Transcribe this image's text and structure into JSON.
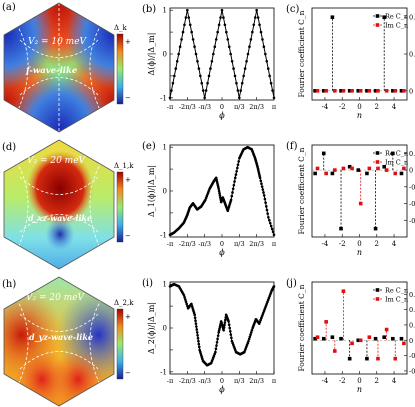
{
  "figure": {
    "rows": [
      {
        "map": {
          "panel_label": "(a)",
          "annotation": "V₂ = 10 meV",
          "wave_label": "f-wave-like",
          "colorbar_title": "Δ_k",
          "colorbar_plus": "+",
          "colorbar_minus": "−",
          "colors": {
            "positive": "#e8261a",
            "negative": "#2b3fd6",
            "zero": "#8fe07a"
          }
        },
        "gap": {
          "panel_label": "(b)",
          "ylabel": "Δ(ϕ)/|Δ_m|",
          "xlabel": "ϕ"
        },
        "fourier": {
          "panel_label": "(c)",
          "ylabel": "Fourier coefficient C_n",
          "xlabel": "n",
          "legend": [
            "Re C_n",
            "Im C_n"
          ]
        }
      },
      {
        "map": {
          "panel_label": "(d)",
          "annotation": "V₂ = 20 meV",
          "wave_label": "d_xz-wave-like",
          "colorbar_title": "Δ_1,k",
          "colorbar_plus": "+",
          "colorbar_minus": "−",
          "colors": {
            "positive": "#a80000",
            "negative": "#1f2fa8",
            "zero": "#7fe0e8"
          }
        },
        "gap": {
          "panel_label": "(e)",
          "ylabel": "Δ_1(ϕ)/|Δ_m|",
          "xlabel": "ϕ"
        },
        "fourier": {
          "panel_label": "(f)",
          "ylabel": "Fourier coefficient C_n",
          "xlabel": "n",
          "legend": [
            "Re C_n",
            "Im C_n"
          ]
        }
      },
      {
        "map": {
          "panel_label": "(h)",
          "annotation": "V₂ = 20 meV",
          "wave_label": "d_yz-wave-like",
          "colorbar_title": "Δ_2,k",
          "colorbar_plus": "+",
          "colorbar_minus": "−",
          "colors": {
            "positive": "#e0201a",
            "negative": "#2533c8",
            "zero": "#9be8b0"
          }
        },
        "gap": {
          "panel_label": "(i)",
          "ylabel": "Δ_2(ϕ)/|Δ_m|",
          "xlabel": "ϕ"
        },
        "fourier": {
          "panel_label": "(j)",
          "ylabel": "Fourier coefficient C_n",
          "xlabel": "n",
          "legend": [
            "Re C_n",
            "Im C_n"
          ]
        }
      }
    ]
  },
  "chart_data": [
    {
      "type": "line",
      "panel": "(b)",
      "ylabel": "Δ(ϕ)/|Δ_m|",
      "xlabel": "ϕ",
      "x_ticks": [
        "-π",
        "-2π/3",
        "-π/3",
        "0",
        "π/3",
        "2π/3",
        "π"
      ],
      "y_ticks": [
        "-1",
        "-0.5",
        "0",
        "0.5",
        "1"
      ],
      "xlim": [
        -3.1416,
        3.1416
      ],
      "ylim": [
        -1.05,
        1.05
      ],
      "series": [
        {
          "x": [
            -3.1416,
            -2.618,
            -2.0944,
            -1.5708,
            -1.0472,
            -0.5236,
            0,
            0.5236,
            1.0472,
            1.5708,
            2.0944,
            2.618,
            3.1416
          ],
          "values": [
            -1,
            0,
            1,
            0,
            -1,
            0,
            1,
            0,
            -1,
            0,
            1,
            0,
            -1
          ]
        }
      ]
    },
    {
      "type": "scatter",
      "panel": "(c)",
      "ylabel": "Fourier coefficient C_n",
      "xlabel": "n",
      "x_ticks": [
        "-4",
        "-2",
        "0",
        "2",
        "4"
      ],
      "y_ticks": [
        "0",
        "0.2",
        "0.4"
      ],
      "xlim": [
        -5.5,
        5.5
      ],
      "ylim": [
        -0.05,
        0.45
      ],
      "series": [
        {
          "name": "Re C_n",
          "x": [
            -5,
            -4,
            -3,
            -2,
            -1,
            0,
            1,
            2,
            3,
            4,
            5
          ],
          "values": [
            0,
            0,
            0.4,
            0,
            0,
            0,
            0,
            0,
            0.4,
            0,
            0
          ]
        },
        {
          "name": "Im C_n",
          "x": [
            -5,
            -4,
            -3,
            -2,
            -1,
            0,
            1,
            2,
            3,
            4,
            5
          ],
          "values": [
            0,
            0,
            0,
            0,
            0,
            0,
            0,
            0,
            0,
            0,
            0
          ]
        }
      ]
    },
    {
      "type": "line",
      "panel": "(e)",
      "ylabel": "Δ_1(ϕ)/|Δ_m|",
      "xlabel": "ϕ",
      "x_ticks": [
        "-π",
        "-2π/3",
        "-π/3",
        "0",
        "π/3",
        "2π/3",
        "π"
      ],
      "y_ticks": [
        "-1",
        "-0.5",
        "0",
        "0.5",
        "1"
      ],
      "xlim": [
        -3.1416,
        3.1416
      ],
      "ylim": [
        -1.05,
        1.05
      ],
      "series": [
        {
          "x": [
            -3.1416,
            -2.9,
            -2.6,
            -2.3,
            -2.1,
            -1.95,
            -1.75,
            -1.5,
            -1.25,
            -1.0,
            -0.75,
            -0.5,
            -0.35,
            -0.2,
            -0.05,
            0.05,
            0.2,
            0.35,
            0.55,
            0.8,
            1.05,
            1.3,
            1.55,
            1.8,
            2.0,
            2.15,
            2.3,
            2.55,
            2.8,
            3.1416
          ],
          "values": [
            -1.0,
            -0.95,
            -0.85,
            -0.72,
            -0.55,
            -0.38,
            -0.28,
            -0.42,
            -0.35,
            -0.2,
            0.05,
            0.22,
            0.3,
            0.05,
            -0.25,
            -0.15,
            -0.3,
            -0.45,
            -0.2,
            0.3,
            0.75,
            0.95,
            1.0,
            0.95,
            0.75,
            0.55,
            0.3,
            -0.1,
            -0.6,
            -1.0
          ]
        }
      ]
    },
    {
      "type": "scatter",
      "panel": "(f)",
      "ylabel": "Fourier coefficient C_n",
      "xlabel": "n",
      "x_ticks": [
        "-4",
        "-2",
        "0",
        "2",
        "4"
      ],
      "y_ticks": [
        "-0.3",
        "-0.2",
        "-0.1",
        "0",
        "0.1"
      ],
      "xlim": [
        -5.5,
        5.5
      ],
      "ylim": [
        -0.4,
        0.15
      ],
      "series": [
        {
          "name": "Re C_n",
          "x": [
            -5,
            -4,
            -3,
            -2,
            -1,
            0,
            1,
            2,
            3,
            4,
            5
          ],
          "values": [
            -0.02,
            0.1,
            -0.02,
            -0.35,
            0.02,
            0,
            -0.02,
            -0.35,
            0.02,
            0.1,
            -0.02
          ]
        },
        {
          "name": "Im C_n",
          "x": [
            -5,
            -4,
            -3,
            -2,
            -1,
            0,
            1,
            2,
            3,
            4,
            5
          ],
          "values": [
            0.01,
            -0.02,
            0,
            0.01,
            0.01,
            -0.2,
            0.01,
            0.01,
            0,
            -0.02,
            0.01
          ]
        }
      ]
    },
    {
      "type": "line",
      "panel": "(i)",
      "ylabel": "Δ_2(ϕ)/|Δ_m|",
      "xlabel": "ϕ",
      "x_ticks": [
        "-π",
        "-2π/3",
        "-π/3",
        "0",
        "π/3",
        "2π/3",
        "π"
      ],
      "y_ticks": [
        "-1",
        "-0.5",
        "0",
        "0.5",
        "1"
      ],
      "xlim": [
        -3.1416,
        3.1416
      ],
      "ylim": [
        -1.05,
        1.05
      ],
      "series": [
        {
          "x": [
            -3.1416,
            -2.9,
            -2.6,
            -2.3,
            -2.05,
            -1.85,
            -1.65,
            -1.5,
            -1.35,
            -1.15,
            -0.9,
            -0.65,
            -0.4,
            -0.2,
            -0.05,
            0.1,
            0.25,
            0.4,
            0.6,
            0.85,
            1.1,
            1.35,
            1.6,
            1.85,
            2.05,
            2.25,
            2.5,
            2.75,
            3.0,
            3.1416
          ],
          "values": [
            0.95,
            1.0,
            0.95,
            0.75,
            0.45,
            0.55,
            0.3,
            -0.1,
            -0.5,
            -0.75,
            -0.85,
            -0.8,
            -0.55,
            -0.1,
            0.15,
            -0.05,
            0.3,
            0.15,
            -0.3,
            -0.55,
            -0.6,
            -0.55,
            -0.3,
            0.0,
            0.2,
            0.1,
            0.35,
            0.6,
            0.85,
            0.95
          ]
        }
      ]
    },
    {
      "type": "scatter",
      "panel": "(j)",
      "ylabel": "Fourier coefficient C_n",
      "xlabel": "n",
      "x_ticks": [
        "-4",
        "-2",
        "0",
        "2",
        "4"
      ],
      "y_ticks": [
        "-0.2",
        "-0.1",
        "0",
        "0.1",
        "0.2",
        "0.3"
      ],
      "xlim": [
        -5.5,
        5.5
      ],
      "ylim": [
        -0.22,
        0.38
      ],
      "series": [
        {
          "name": "Re C_n",
          "x": [
            -5,
            -4,
            -3,
            -2,
            -1,
            0,
            1,
            2,
            3,
            4,
            5
          ],
          "values": [
            0.01,
            0.01,
            0.02,
            0.01,
            -0.12,
            0,
            -0.12,
            0.01,
            0.02,
            0.01,
            0.01
          ]
        },
        {
          "name": "Im C_n",
          "x": [
            -5,
            -4,
            -3,
            -2,
            -1,
            0,
            1,
            2,
            3,
            4,
            5
          ],
          "values": [
            0.02,
            0.12,
            -0.07,
            0.32,
            -0.02,
            0,
            0.02,
            -0.12,
            0.07,
            -0.12,
            -0.02
          ]
        }
      ]
    }
  ]
}
